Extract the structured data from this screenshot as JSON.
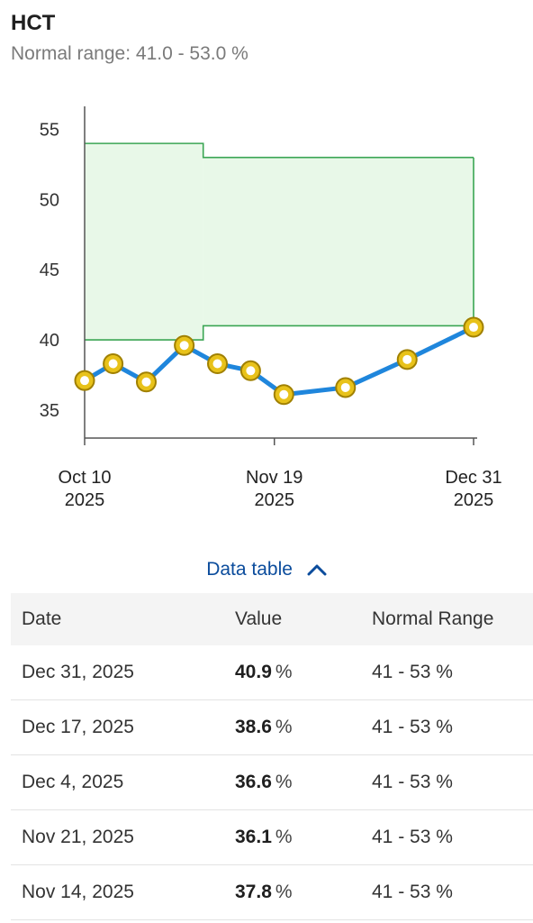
{
  "header": {
    "title": "HCT",
    "subtitle": "Normal range: 41.0 - 53.0 %"
  },
  "chart_data": {
    "type": "line",
    "title": "HCT",
    "ylim": [
      33,
      56
    ],
    "y_ticks": [
      35,
      40,
      45,
      50,
      55
    ],
    "x_ticks": [
      {
        "date": "2025-10-10",
        "line1": "Oct 10",
        "line2": "2025"
      },
      {
        "date": "2025-11-19",
        "line1": "Nov 19",
        "line2": "2025"
      },
      {
        "date": "2025-12-31",
        "line1": "Dec 31",
        "line2": "2025"
      }
    ],
    "series": [
      {
        "values": [
          {
            "date": "2025-10-10",
            "y": 37.1
          },
          {
            "date": "2025-10-16",
            "y": 38.3
          },
          {
            "date": "2025-10-23",
            "y": 37.0
          },
          {
            "date": "2025-10-31",
            "y": 39.6
          },
          {
            "date": "2025-11-07",
            "y": 38.3
          },
          {
            "date": "2025-11-14",
            "y": 37.8
          },
          {
            "date": "2025-11-21",
            "y": 36.1
          },
          {
            "date": "2025-12-04",
            "y": 36.6
          },
          {
            "date": "2025-12-17",
            "y": 38.6
          },
          {
            "date": "2025-12-31",
            "y": 40.9
          }
        ]
      }
    ],
    "normal_range_segments": [
      {
        "start": "2025-10-10",
        "end": "2025-11-04",
        "low": 40,
        "high": 54
      },
      {
        "start": "2025-11-04",
        "end": "2025-12-31",
        "low": 41,
        "high": 53
      }
    ],
    "colors": {
      "line": "#1f86dc",
      "marker_fill": "#e8c21a",
      "marker_stroke": "#a08000",
      "range_fill": "#e8f8e8",
      "range_stroke": "#3aa553",
      "axis": "#555555"
    }
  },
  "table_toggle": {
    "label": "Data table"
  },
  "table": {
    "headers": [
      "Date",
      "Value",
      "Normal Range"
    ],
    "unit": "%",
    "rows": [
      {
        "date": "Dec 31, 2025",
        "value": "40.9",
        "range": "41 - 53 %"
      },
      {
        "date": "Dec 17, 2025",
        "value": "38.6",
        "range": "41 - 53 %"
      },
      {
        "date": "Dec 4, 2025",
        "value": "36.6",
        "range": "41 - 53 %"
      },
      {
        "date": "Nov 21, 2025",
        "value": "36.1",
        "range": "41 - 53 %"
      },
      {
        "date": "Nov 14, 2025",
        "value": "37.8",
        "range": "41 - 53 %"
      }
    ]
  }
}
